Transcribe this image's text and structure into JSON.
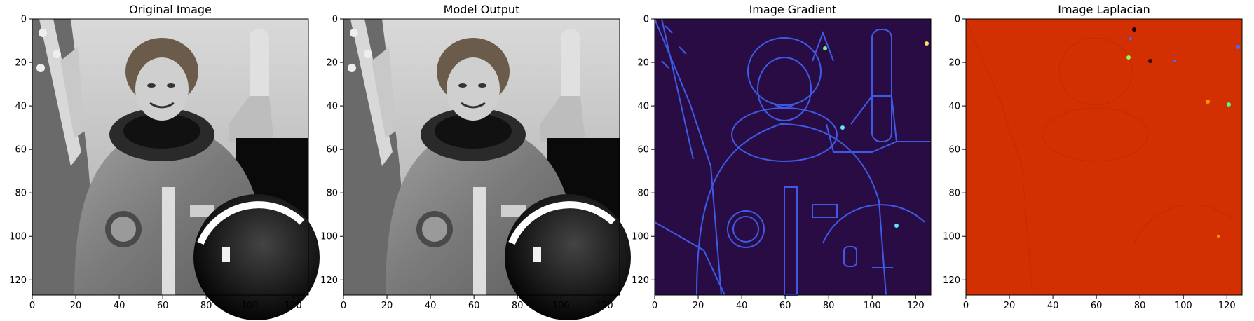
{
  "chart_data": [
    {
      "type": "heatmap",
      "title": "Original Image",
      "colormap": "gray",
      "xlim": [
        0,
        127
      ],
      "ylim": [
        127,
        0
      ],
      "xticks": [
        "0",
        "20",
        "40",
        "60",
        "80",
        "100",
        "120"
      ],
      "yticks": [
        "0",
        "20",
        "40",
        "60",
        "80",
        "100",
        "120"
      ],
      "grid": false
    },
    {
      "type": "heatmap",
      "title": "Model Output",
      "colormap": "gray",
      "xlim": [
        0,
        127
      ],
      "ylim": [
        127,
        0
      ],
      "xticks": [
        "0",
        "20",
        "40",
        "60",
        "80",
        "100",
        "120"
      ],
      "yticks": [
        "0",
        "20",
        "40",
        "60",
        "80",
        "100",
        "120"
      ],
      "grid": false
    },
    {
      "type": "heatmap",
      "title": "Image Gradient",
      "colormap": "turbo",
      "background_color": "#2a0c45",
      "edge_color": "#3d5be6",
      "xlim": [
        0,
        127
      ],
      "ylim": [
        127,
        0
      ],
      "xticks": [
        "0",
        "20",
        "40",
        "60",
        "80",
        "100",
        "120"
      ],
      "yticks": [
        "0",
        "20",
        "40",
        "60",
        "80",
        "100",
        "120"
      ],
      "grid": false
    },
    {
      "type": "heatmap",
      "title": "Image Laplacian",
      "colormap": "turbo",
      "background_color": "#d22f02",
      "xlim": [
        0,
        127
      ],
      "ylim": [
        127,
        0
      ],
      "xticks": [
        "0",
        "20",
        "40",
        "60",
        "80",
        "100",
        "120"
      ],
      "yticks": [
        "0",
        "20",
        "40",
        "60",
        "80",
        "100",
        "120"
      ],
      "grid": false
    }
  ]
}
